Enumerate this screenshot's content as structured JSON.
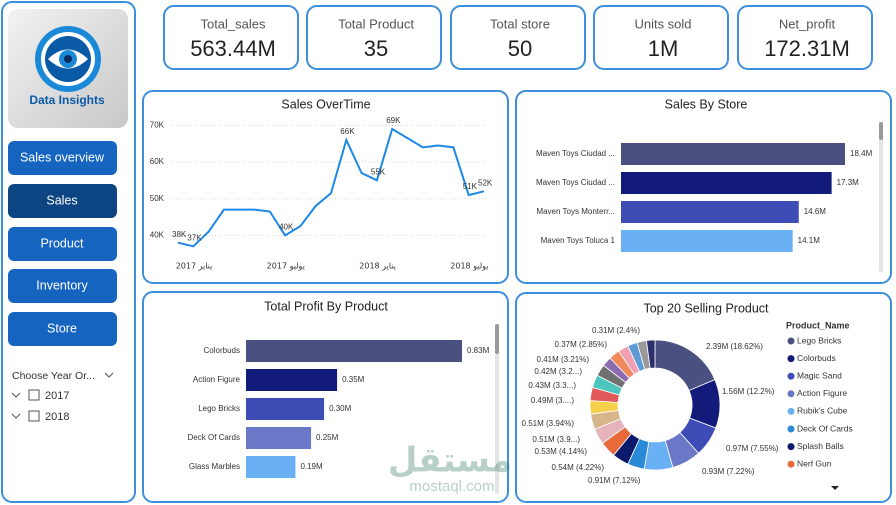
{
  "sidebar": {
    "logo_text": "Data Insights",
    "nav": [
      "Sales overview",
      "Sales",
      "Product",
      "Inventory",
      "Store"
    ],
    "filter": {
      "label": "Choose Year Or...",
      "options": [
        "2017",
        "2018"
      ]
    }
  },
  "kpis": [
    {
      "label": "Total_sales",
      "value": "563.44M"
    },
    {
      "label": "Total Product",
      "value": "35"
    },
    {
      "label": "Total store",
      "value": "50"
    },
    {
      "label": "Units sold",
      "value": "1M"
    },
    {
      "label": "Net_profit",
      "value": "172.31M"
    }
  ],
  "chart_data": [
    {
      "type": "line",
      "title": "Sales OverTime",
      "categories": [
        "يناير 2017",
        null,
        null,
        null,
        null,
        null,
        "يوليو 2017",
        null,
        null,
        null,
        null,
        null,
        "يناير 2018",
        null,
        null,
        null,
        null,
        null,
        "يوليو 2018",
        null,
        null
      ],
      "values": [
        38000,
        37000,
        41000,
        47000,
        47000,
        47000,
        46500,
        40000,
        42500,
        48000,
        51500,
        66000,
        57000,
        55000,
        69000,
        66500,
        64000,
        64500,
        64000,
        51000,
        52000
      ],
      "value_labels": [
        "38K",
        "37K",
        null,
        null,
        null,
        null,
        null,
        "40K",
        null,
        null,
        null,
        "66K",
        null,
        "55K",
        "69K",
        null,
        null,
        null,
        null,
        "51K",
        "52K"
      ],
      "color": "#1e88e5",
      "ylim": [
        36000,
        72000
      ],
      "yticks": [
        {
          "value": 40000,
          "label": "40K"
        },
        {
          "value": 50000,
          "label": "50K"
        },
        {
          "value": 60000,
          "label": "60K"
        },
        {
          "value": 70000,
          "label": "70K"
        }
      ],
      "grid": true
    },
    {
      "type": "hbar",
      "title": "Sales By Store",
      "categories": [
        "Maven Toys Ciudad ...",
        "Maven Toys Ciudad ...",
        "Maven Toys Monterr...",
        "Maven Toys Toluca 1"
      ],
      "values": [
        18400000,
        17300000,
        14600000,
        14100000
      ],
      "value_labels": [
        "18.4M",
        "17.3M",
        "14.6M",
        "14.1M"
      ],
      "colors": [
        "#4a5080",
        "#121a7a",
        "#3d4db5",
        "#6ab0f5"
      ]
    },
    {
      "type": "hbar",
      "title": "Total Profit By Product",
      "categories": [
        "Colorbuds",
        "Action Figure",
        "Lego Bricks",
        "Deck Of Cards",
        "Glass Marbles"
      ],
      "values": [
        830000,
        350000,
        300000,
        250000,
        190000
      ],
      "value_labels": [
        "0.83M",
        "0.35M",
        "0.30M",
        "0.25M",
        "0.19M"
      ],
      "colors": [
        "#4a5080",
        "#121a7a",
        "#3d4db5",
        "#6b78c8",
        "#6ab0f5"
      ]
    },
    {
      "type": "donut",
      "title": "Top 20 Selling Product",
      "legend_title": "Product_Name",
      "legend": "right",
      "categories": [
        "Lego Bricks",
        "Colorbuds",
        "Magic Sand",
        "Action Figure",
        "Rubik's Cube",
        "Deck Of Cards",
        "Splash Balls",
        "Nerf Gun",
        null,
        null,
        null,
        null,
        null,
        null,
        null,
        null,
        null,
        null,
        null,
        null
      ],
      "values": [
        2390000,
        1560000,
        970000,
        930000,
        910000,
        540000,
        530000,
        510000,
        510000,
        490000,
        430000,
        420000,
        410000,
        370000,
        310000,
        350000,
        330000,
        310000,
        300000,
        270000
      ],
      "value_labels": [
        "2.39M (18.62%)",
        "1.56M (12.2%)",
        "0.97M (7.55%)",
        "0.93M (7.22%)",
        "0.91M (7.12%)",
        "0.54M (4.22%)",
        "0.53M (4.14%)",
        "0.51M (3.9...)",
        "0.51M (3.94%)",
        "0.49M (3....)",
        "0.43M (3.3...)",
        "0.42M (3.2...)",
        "0.41M (3.21%)",
        "0.37M (2.85%)",
        "0.31M (2.4%)",
        null,
        null,
        null,
        null,
        null
      ],
      "colors": [
        "#4a5080",
        "#121a7a",
        "#3d4db5",
        "#6b78c8",
        "#6ab0f5",
        "#2a8ad8",
        "#0c1a6e",
        "#e86a3a",
        "#e6b3bb",
        "#d8b48c",
        "#f6d04d",
        "#e35a5a",
        "#4ec6c0",
        "#707070",
        "#8c6bb1",
        "#f08a5d",
        "#f0a0b0",
        "#5c9bd6",
        "#999999",
        "#2b2f6b"
      ]
    }
  ],
  "watermark": {
    "arabic": "مستقل",
    "latin": "mostaql.com"
  }
}
